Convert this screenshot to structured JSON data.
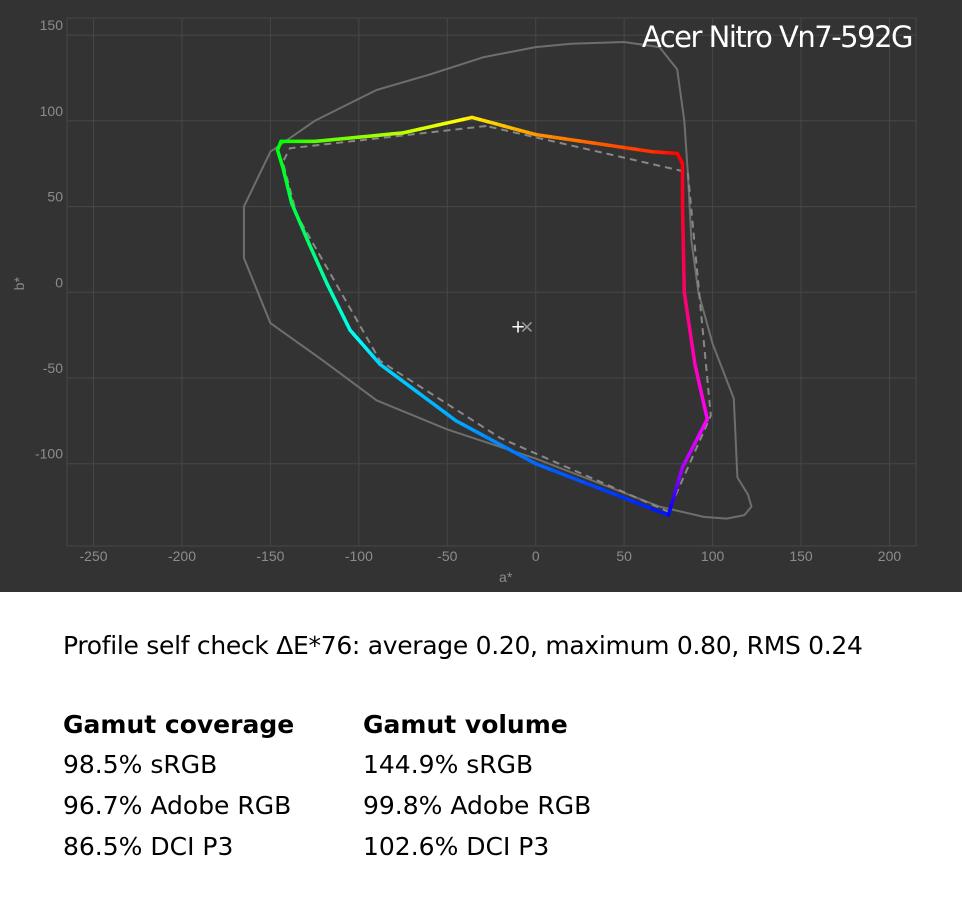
{
  "chart_data": {
    "type": "line",
    "title": "Acer Nitro Vn7-592G",
    "xlabel": "a*",
    "ylabel": "b*",
    "xlim": [
      -265,
      215
    ],
    "ylim": [
      -148,
      160
    ],
    "xticks": [
      -250,
      -200,
      -150,
      -100,
      -50,
      0,
      50,
      100,
      150,
      200
    ],
    "yticks": [
      -100,
      -50,
      0,
      50,
      100,
      150
    ],
    "grid": true,
    "series": [
      {
        "role": "measured-gamut",
        "style": "solid-hue-gradient",
        "points": [
          [
            -36,
            102
          ],
          [
            -75,
            93
          ],
          [
            -125,
            88
          ],
          [
            -144,
            88
          ],
          [
            -146,
            83
          ],
          [
            -143,
            73
          ],
          [
            -138,
            52
          ],
          [
            -128,
            28
          ],
          [
            -118,
            5
          ],
          [
            -105,
            -22
          ],
          [
            -88,
            -42
          ],
          [
            -45,
            -75
          ],
          [
            0,
            -100
          ],
          [
            75,
            -130
          ],
          [
            83,
            -102
          ],
          [
            97,
            -74
          ],
          [
            90,
            -42
          ],
          [
            84,
            0
          ],
          [
            83,
            50
          ],
          [
            83,
            75
          ],
          [
            80,
            81
          ],
          [
            66,
            82
          ],
          [
            0,
            92
          ],
          [
            -36,
            102
          ]
        ],
        "hues": [
          55,
          75,
          100,
          120,
          125,
          128,
          135,
          145,
          160,
          175,
          190,
          200,
          215,
          235,
          280,
          300,
          315,
          335,
          350,
          355,
          0,
          10,
          35,
          55
        ]
      },
      {
        "role": "reference-gamut",
        "style": "dashed",
        "color": "#888888",
        "points": [
          [
            -28,
            97
          ],
          [
            -139,
            84
          ],
          [
            -143,
            76
          ],
          [
            -135,
            45
          ],
          [
            -88,
            -40
          ],
          [
            -20,
            -85
          ],
          [
            75,
            -128
          ],
          [
            99,
            -72
          ],
          [
            86,
            70
          ],
          [
            -28,
            97
          ]
        ]
      },
      {
        "role": "visible-spectrum",
        "style": "solid",
        "color": "#6e6e6e",
        "points": [
          [
            20,
            145
          ],
          [
            50,
            146
          ],
          [
            70,
            143
          ],
          [
            80,
            130
          ],
          [
            84,
            100
          ],
          [
            86,
            70
          ],
          [
            88,
            30
          ],
          [
            92,
            0
          ],
          [
            100,
            -30
          ],
          [
            112,
            -62
          ],
          [
            114,
            -108
          ],
          [
            120,
            -118
          ],
          [
            122,
            -125
          ],
          [
            118,
            -130
          ],
          [
            108,
            -132
          ],
          [
            95,
            -131
          ],
          [
            70,
            -125
          ],
          [
            40,
            -113
          ],
          [
            0,
            -97
          ],
          [
            -50,
            -80
          ],
          [
            -90,
            -63
          ],
          [
            -120,
            -40
          ],
          [
            -150,
            -18
          ],
          [
            -165,
            20
          ],
          [
            -165,
            50
          ],
          [
            -150,
            82
          ],
          [
            -125,
            100
          ],
          [
            -90,
            118
          ],
          [
            -60,
            127
          ],
          [
            -30,
            137
          ],
          [
            0,
            143
          ],
          [
            20,
            145
          ]
        ]
      }
    ],
    "white_points": [
      {
        "marker": "+",
        "x": -10,
        "y": -20,
        "color": "#ffffff"
      },
      {
        "marker": "×",
        "x": -5,
        "y": -20,
        "color": "#9a9a9a"
      }
    ]
  },
  "profile_check": "Profile self check ΔE*76: average 0.20, maximum 0.80, RMS 0.24",
  "coverage": {
    "heading": "Gamut coverage",
    "rows": [
      "98.5% sRGB",
      "96.7% Adobe RGB",
      "86.5% DCI P3"
    ]
  },
  "volume": {
    "heading": "Gamut volume",
    "rows": [
      "144.9% sRGB",
      "99.8% Adobe RGB",
      "102.6% DCI P3"
    ]
  }
}
